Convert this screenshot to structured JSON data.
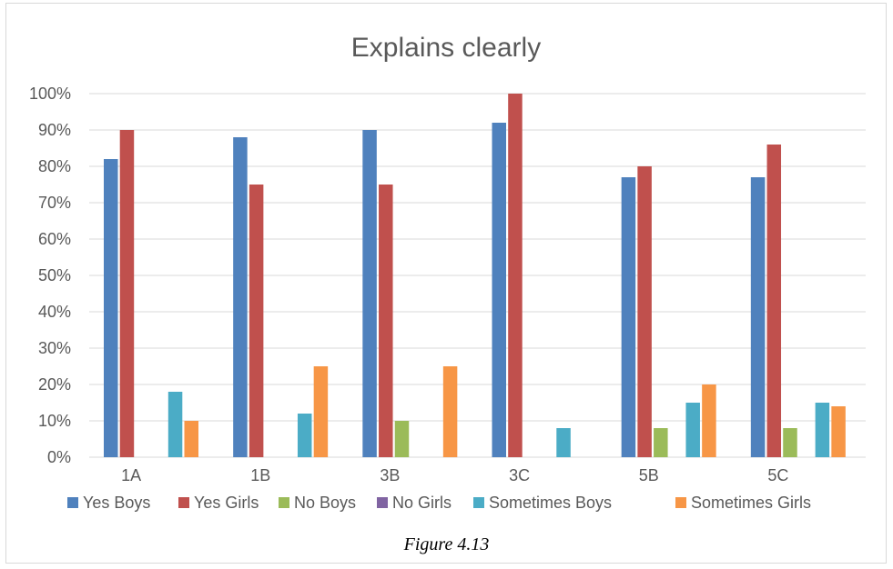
{
  "chart_data": {
    "type": "bar",
    "title": "Explains clearly",
    "categories": [
      "1A",
      "1B",
      "3B",
      "3C",
      "5B",
      "5C"
    ],
    "series": [
      {
        "name": "Yes Boys",
        "color": "#4f81bd",
        "values": [
          82,
          88,
          90,
          92,
          77,
          77
        ]
      },
      {
        "name": "Yes Girls",
        "color": "#c0504d",
        "values": [
          90,
          75,
          75,
          100,
          80,
          86
        ]
      },
      {
        "name": "No Boys",
        "color": "#9bbb59",
        "values": [
          0,
          0,
          10,
          0,
          8,
          8
        ]
      },
      {
        "name": "No Girls",
        "color": "#8064a2",
        "values": [
          0,
          0,
          0,
          0,
          0,
          0
        ]
      },
      {
        "name": "Sometimes Boys",
        "color": "#4bacc6",
        "values": [
          18,
          12,
          0,
          8,
          15,
          15
        ]
      },
      {
        "name": "Sometimes Girls",
        "color": "#f79646",
        "values": [
          10,
          25,
          25,
          0,
          20,
          14
        ]
      }
    ],
    "ylim": [
      0,
      100
    ],
    "yticks": [
      "0%",
      "10%",
      "20%",
      "30%",
      "40%",
      "50%",
      "60%",
      "70%",
      "80%",
      "90%",
      "100%"
    ],
    "grid": true,
    "legend": "bottom"
  },
  "caption": "Figure 4.13"
}
